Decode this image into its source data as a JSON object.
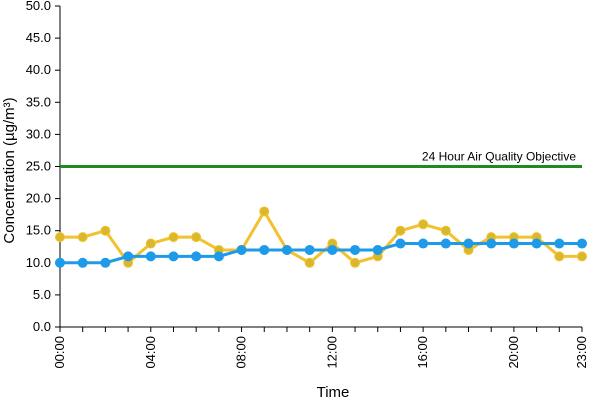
{
  "chart_data": {
    "type": "line",
    "title": "",
    "xlabel": "Time",
    "ylabel": "Concentration (µg/m³)",
    "ylim": [
      0,
      50
    ],
    "y_ticks": [
      "0.0",
      "5.0",
      "10.0",
      "15.0",
      "20.0",
      "25.0",
      "30.0",
      "35.0",
      "40.0",
      "45.0",
      "50.0"
    ],
    "x_ticks": [
      "00:00",
      "04:00",
      "08:00",
      "12:00",
      "16:00",
      "20:00",
      "23:00"
    ],
    "x": [
      0,
      1,
      2,
      3,
      4,
      5,
      6,
      7,
      8,
      9,
      10,
      11,
      12,
      13,
      14,
      15,
      16,
      17,
      18,
      19,
      20,
      21,
      22,
      23
    ],
    "legend": "none",
    "grid": false,
    "series": [
      {
        "color": "#f2c12e",
        "marker_color": "#d9b82c",
        "values": [
          14,
          14,
          15,
          10,
          13,
          14,
          14,
          12,
          12,
          18,
          12,
          10,
          13,
          10,
          11,
          15,
          16,
          15,
          12,
          14,
          14,
          14,
          11,
          11
        ]
      },
      {
        "color": "#1e9be8",
        "marker_color": "#1e9be8",
        "values": [
          10,
          10,
          10,
          11,
          11,
          11,
          11,
          11,
          12,
          12,
          12,
          12,
          12,
          12,
          12,
          13,
          13,
          13,
          13,
          13,
          13,
          13,
          13,
          13
        ]
      }
    ],
    "reference_line": {
      "value": 25,
      "label": "24 Hour Air Quality Objective",
      "color": "#1f8a1f"
    }
  }
}
